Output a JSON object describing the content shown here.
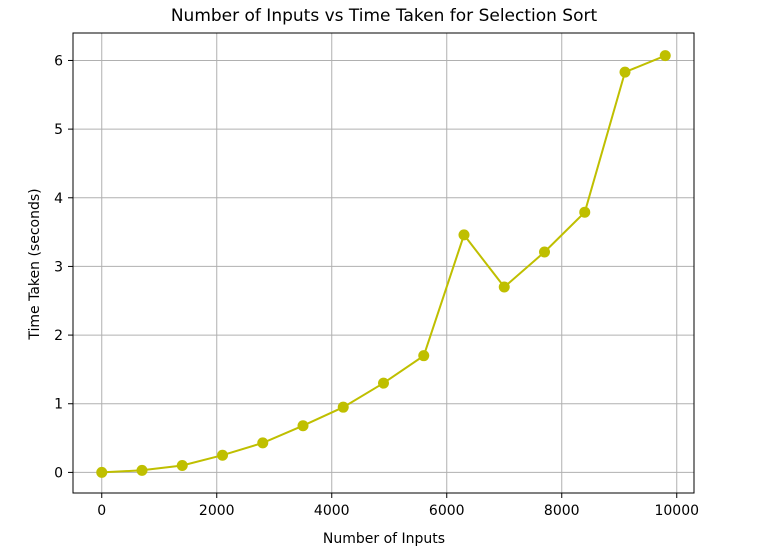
{
  "chart_data": {
    "type": "line",
    "title": "Number of Inputs vs Time Taken for Selection Sort",
    "xlabel": "Number of Inputs",
    "ylabel": "Time Taken (seconds)",
    "xlim": [
      -500,
      10300
    ],
    "ylim": [
      -0.3,
      6.4
    ],
    "xticks": [
      0,
      2000,
      4000,
      6000,
      8000,
      10000
    ],
    "yticks": [
      0,
      1,
      2,
      3,
      4,
      5,
      6
    ],
    "grid": true,
    "series": [
      {
        "color": "#bfbf00",
        "marker": "circle",
        "x": [
          0,
          700,
          1400,
          2100,
          2800,
          3500,
          4200,
          4900,
          5600,
          6300,
          7000,
          7700,
          8400,
          9100,
          9800
        ],
        "y": [
          0.0,
          0.03,
          0.1,
          0.25,
          0.43,
          0.68,
          0.95,
          1.3,
          1.7,
          3.46,
          2.7,
          3.21,
          3.79,
          5.83,
          6.07
        ]
      }
    ]
  }
}
